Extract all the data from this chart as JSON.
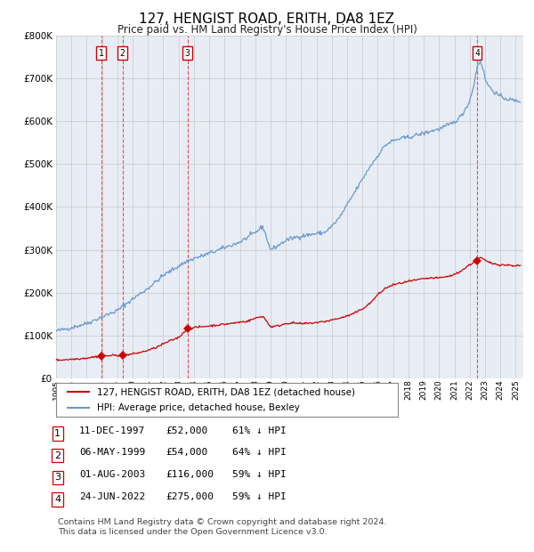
{
  "title": "127, HENGIST ROAD, ERITH, DA8 1EZ",
  "subtitle": "Price paid vs. HM Land Registry's House Price Index (HPI)",
  "sales": [
    {
      "num": 1,
      "date_year": 1997.94,
      "price": 52000
    },
    {
      "num": 2,
      "date_year": 1999.34,
      "price": 54000
    },
    {
      "num": 3,
      "date_year": 2003.58,
      "price": 116000
    },
    {
      "num": 4,
      "date_year": 2022.48,
      "price": 275000
    }
  ],
  "table_rows": [
    [
      "1",
      "11-DEC-1997",
      "£52,000",
      "61% ↓ HPI"
    ],
    [
      "2",
      "06-MAY-1999",
      "£54,000",
      "64% ↓ HPI"
    ],
    [
      "3",
      "01-AUG-2003",
      "£116,000",
      "59% ↓ HPI"
    ],
    [
      "4",
      "24-JUN-2022",
      "£275,000",
      "59% ↓ HPI"
    ]
  ],
  "legend_line1": "127, HENGIST ROAD, ERITH, DA8 1EZ (detached house)",
  "legend_line2": "HPI: Average price, detached house, Bexley",
  "footer1": "Contains HM Land Registry data © Crown copyright and database right 2024.",
  "footer2": "This data is licensed under the Open Government Licence v3.0.",
  "hpi_color": "#6699cc",
  "price_color": "#cc0000",
  "marker_color": "#cc0000",
  "vline_color": "#ee3333",
  "grid_color": "#c8c8c8",
  "bg_color": "#e8edf5",
  "ylim": [
    0,
    800000
  ],
  "yticks": [
    0,
    100000,
    200000,
    300000,
    400000,
    500000,
    600000,
    700000,
    800000
  ],
  "xlim_start": 1995,
  "xlim_end": 2025.5
}
